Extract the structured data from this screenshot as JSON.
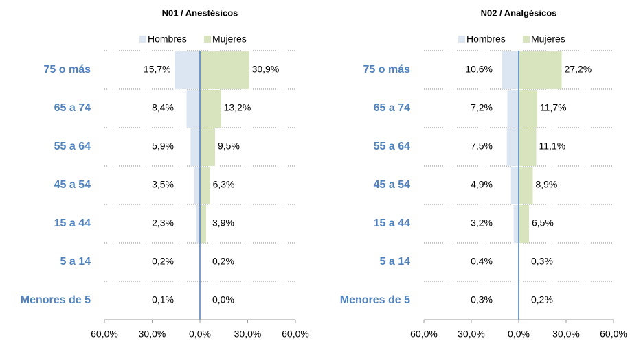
{
  "chart_data": [
    {
      "type": "pyramid",
      "title": "N01 / Anestésicos",
      "categories": [
        "75 o más",
        "65 a 74",
        "55 a 64",
        "45 a 54",
        "15 a 44",
        "5 a 14",
        "Menores de 5"
      ],
      "series": [
        {
          "name": "Hombres",
          "color": "#dce6f2",
          "values": [
            -15.7,
            -8.4,
            -5.9,
            -3.5,
            -2.3,
            -0.2,
            -0.1
          ],
          "value_labels": [
            "15,7%",
            "8,4%",
            "5,9%",
            "3,5%",
            "2,3%",
            "0,2%",
            "0,1%"
          ]
        },
        {
          "name": "Mujeres",
          "color": "#d7e4bd",
          "values": [
            30.9,
            13.2,
            9.5,
            6.3,
            3.9,
            0.2,
            0.0
          ],
          "value_labels": [
            "30,9%",
            "13,2%",
            "9,5%",
            "6,3%",
            "3,9%",
            "0,2%",
            "0,0%"
          ]
        }
      ],
      "xlim": [
        -60,
        60
      ],
      "xticks": [
        {
          "value": -60,
          "label": "60,0%"
        },
        {
          "value": -30,
          "label": "30,0%"
        },
        {
          "value": 0,
          "label": "0,0%"
        },
        {
          "value": 30,
          "label": "30,0%"
        },
        {
          "value": 60,
          "label": "60,0%"
        }
      ]
    },
    {
      "type": "pyramid",
      "title": "N02 / Analgésicos",
      "categories": [
        "75 o más",
        "65 a 74",
        "55 a 64",
        "45 a 54",
        "15 a 44",
        "5 a 14",
        "Menores de 5"
      ],
      "series": [
        {
          "name": "Hombres",
          "color": "#dce6f2",
          "values": [
            -10.6,
            -7.2,
            -7.5,
            -4.9,
            -3.2,
            -0.4,
            -0.3
          ],
          "value_labels": [
            "10,6%",
            "7,2%",
            "7,5%",
            "4,9%",
            "3,2%",
            "0,4%",
            "0,3%"
          ]
        },
        {
          "name": "Mujeres",
          "color": "#d7e4bd",
          "values": [
            27.2,
            11.7,
            11.1,
            8.9,
            6.5,
            0.3,
            0.2
          ],
          "value_labels": [
            "27,2%",
            "11,7%",
            "11,1%",
            "8,9%",
            "6,5%",
            "0,3%",
            "0,2%"
          ]
        }
      ],
      "xlim": [
        -60,
        60
      ],
      "xticks": [
        {
          "value": -60,
          "label": "60,0%"
        },
        {
          "value": -30,
          "label": "30,0%"
        },
        {
          "value": 0,
          "label": "0,0%"
        },
        {
          "value": 30,
          "label": "30,0%"
        },
        {
          "value": 60,
          "label": "60,0%"
        }
      ]
    }
  ]
}
